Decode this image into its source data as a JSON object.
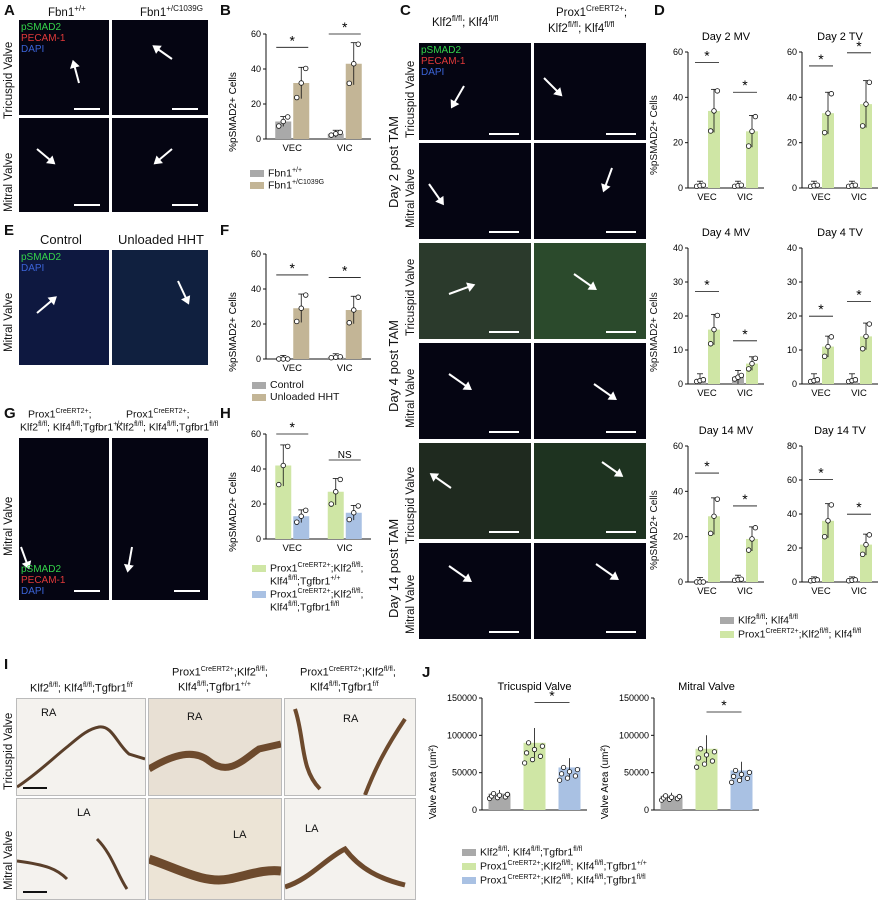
{
  "colors": {
    "grey": "#a9a9a9",
    "tan": "#c3b596",
    "green": "#cfe6a5",
    "blue": "#a9c1e3",
    "pSMAD2": "#34d34a",
    "PECAM": "#e23a3a",
    "DAPI": "#3b63d6"
  },
  "panelA": {
    "letter": "A",
    "col1": "Fbn1",
    "col1sup": "+/+",
    "col2": "Fbn1",
    "col2sup": "+/C1039G",
    "row1": "Tricuspid Valve",
    "row2": "Mitral Valve",
    "stain": [
      "pSMAD2",
      "PECAM-1",
      "DAPI"
    ]
  },
  "panelB": {
    "letter": "B",
    "ylabel": "%pSMAD2+ Cells",
    "legend": [
      {
        "name": "Fbn1",
        "sup": "+/+"
      },
      {
        "name": "Fbn1",
        "sup": "+/C1039G"
      }
    ],
    "star": "*"
  },
  "panelC": {
    "letter": "C",
    "col1": "Klf2",
    "col1a": "fl/fl",
    "col1b": "; Klf4",
    "col1c": "fl/fl",
    "col2a": "Prox1",
    "col2b": "CreERT2+",
    "col2c": ";",
    "col2d": "Klf2",
    "col2e": "fl/fl",
    "col2f": "; Klf4",
    "col2g": "fl/fl",
    "rows": [
      "Tricuspid Valve",
      "Mitral Valve",
      "Tricuspid Valve",
      "Mitral Valve",
      "Tricuspid Valve",
      "Mitral Valve"
    ],
    "groups": [
      "Day 2 post TAM",
      "Day 4 post TAM",
      "Day 14 post TAM"
    ],
    "stain": [
      "pSMAD2",
      "PECAM-1",
      "DAPI"
    ]
  },
  "panelD": {
    "letter": "D",
    "ylabel": "%pSMAD2+ Cells",
    "titles": [
      "Day 2 MV",
      "Day 2 TV",
      "Day 4 MV",
      "Day 4 TV",
      "Day 14 MV",
      "Day 14 TV"
    ],
    "legend": [
      {
        "a": "Klf2",
        "b": "fl/fl",
        "c": "; Klf4",
        "d": "fl/fl"
      },
      {
        "a": "Prox1",
        "b": "CreERT2+",
        "c": ";Klf2",
        "d": "fl/fl",
        "e": "; Klf4",
        "f": "fl/fl"
      }
    ]
  },
  "panelE": {
    "letter": "E",
    "col1": "Control",
    "col2": "Unloaded HHT",
    "row": "Mitral Valve",
    "stain": [
      "pSMAD2",
      "DAPI"
    ]
  },
  "panelF": {
    "letter": "F",
    "ylabel": "%pSMAD2+ Cells",
    "legend": [
      "Control",
      "Unloaded HHT"
    ]
  },
  "panelG": {
    "letter": "G",
    "col1": [
      "Prox1",
      "CreERT2+",
      ";",
      "Klf2",
      "fl/fl",
      "; Klf4",
      "fl/fl",
      ";Tgfbr1",
      "+/+"
    ],
    "col2": [
      "Prox1",
      "CreERT2+",
      ";",
      "Klf2",
      "fl/fl",
      "; Klf4",
      "fl/fl",
      ";Tgfbr1",
      "fl/fl"
    ],
    "row": "Mitral Valve",
    "stain": [
      "pSMAD2",
      "PECAM-1",
      "DAPI"
    ]
  },
  "panelH": {
    "letter": "H",
    "ylabel": "%pSMAD2+ Cells",
    "ns": "NS",
    "legend1": [
      "Prox1",
      "CreERT2+",
      ";Klf2",
      "fl/fl",
      ";",
      "Klf4",
      "fl/fl",
      ";Tgfbr1",
      "+/+"
    ],
    "legend2": [
      "Prox1",
      "CreERT2+",
      ";Klf2",
      "fl/fl",
      ";",
      "Klf4",
      "fl/fl",
      ";Tgfbr1",
      "fl/fl"
    ]
  },
  "panelI": {
    "letter": "I",
    "col1": [
      "Klf2",
      "fl/fl",
      "; Klf4",
      "fl/fl",
      ";Tgfbr1",
      "f/f"
    ],
    "col2": [
      "Prox1",
      "CreERT2+",
      ";Klf2",
      "fl/fl",
      ";",
      "Klf4",
      "fl/fl",
      ";Tgfbr1",
      "+/+"
    ],
    "col3": [
      "Prox1",
      "CreERT2+",
      ";Klf2",
      "fl/fl",
      ";",
      "Klf4",
      "fl/fl",
      ";Tgfbr1",
      "f/f"
    ],
    "row1": "Tricuspid Valve",
    "row2": "Mitral Valve",
    "ra": "RA",
    "la": "LA"
  },
  "panelJ": {
    "letter": "J",
    "titles": [
      "Tricuspid Valve",
      "Mitral Valve"
    ],
    "ylabel": "Valve Area (um²)",
    "legend": [
      [
        "Klf2",
        "fl/fl",
        "; Klf4",
        "fl/fl",
        ";Tgfbr1",
        "fl/fl"
      ],
      [
        "Prox1",
        "CreERT2+",
        ";Klf2",
        "fl/fl",
        "; Klf4",
        "fl/fl",
        ";Tgfbr1",
        "+/+"
      ],
      [
        "Prox1",
        "CreERT2+",
        ";Klf2",
        "fl/fl",
        "; Klf4",
        "fl/fl",
        ";Tgfbr1",
        "fl/fl"
      ]
    ]
  },
  "chart_data": [
    {
      "id": "B",
      "type": "bar",
      "categories": [
        "VEC",
        "VIC"
      ],
      "series": [
        {
          "name": "Fbn1+/+",
          "values": [
            10,
            3
          ]
        },
        {
          "name": "Fbn1+/C1039G",
          "values": [
            32,
            43
          ]
        }
      ],
      "ylim": [
        0,
        60
      ],
      "yticks": [
        0,
        20,
        40,
        60
      ],
      "ylabel": "%pSMAD2+ Cells",
      "significance": [
        "*",
        "*"
      ]
    },
    {
      "id": "F",
      "type": "bar",
      "categories": [
        "VEC",
        "VIC"
      ],
      "series": [
        {
          "name": "Control",
          "values": [
            0,
            1
          ]
        },
        {
          "name": "Unloaded HHT",
          "values": [
            29,
            28
          ]
        }
      ],
      "ylim": [
        0,
        60
      ],
      "yticks": [
        0,
        20,
        40,
        60
      ],
      "ylabel": "%pSMAD2+ Cells",
      "significance": [
        "*",
        "*"
      ]
    },
    {
      "id": "H",
      "type": "bar",
      "categories": [
        "VEC",
        "VIC"
      ],
      "series": [
        {
          "name": "Prox1CreERT2+;Klf2fl/fl;Klf4fl/fl;Tgfbr1+/+",
          "values": [
            42,
            27
          ]
        },
        {
          "name": "Prox1CreERT2+;Klf2fl/fl;Klf4fl/fl;Tgfbr1fl/fl",
          "values": [
            13,
            15
          ]
        }
      ],
      "ylim": [
        0,
        60
      ],
      "yticks": [
        0,
        20,
        40,
        60
      ],
      "ylabel": "%pSMAD2+ Cells",
      "significance": [
        "*",
        "NS"
      ]
    },
    {
      "id": "D1",
      "type": "bar",
      "title": "Day 2 MV",
      "categories": [
        "VEC",
        "VIC"
      ],
      "series": [
        {
          "name": "Klf2fl/fl; Klf4fl/fl",
          "values": [
            1,
            1
          ]
        },
        {
          "name": "Prox1CreERT2+;Klf2fl/fl; Klf4fl/fl",
          "values": [
            34,
            25
          ]
        }
      ],
      "ylim": [
        0,
        60
      ],
      "yticks": [
        0,
        20,
        40,
        60
      ]
    },
    {
      "id": "D2",
      "type": "bar",
      "title": "Day 2 TV",
      "categories": [
        "VEC",
        "VIC"
      ],
      "series": [
        {
          "name": "Klf2fl/fl; Klf4fl/fl",
          "values": [
            1,
            1
          ]
        },
        {
          "name": "Prox1CreERT2+;Klf2fl/fl; Klf4fl/fl",
          "values": [
            33,
            37
          ]
        }
      ],
      "ylim": [
        0,
        60
      ],
      "yticks": [
        0,
        20,
        40,
        60
      ]
    },
    {
      "id": "D3",
      "type": "bar",
      "title": "Day 4 MV",
      "categories": [
        "VEC",
        "VIC"
      ],
      "series": [
        {
          "name": "Klf2fl/fl; Klf4fl/fl",
          "values": [
            1,
            2
          ]
        },
        {
          "name": "Prox1CreERT2+;Klf2fl/fl; Klf4fl/fl",
          "values": [
            16,
            6
          ]
        }
      ],
      "ylim": [
        0,
        40
      ],
      "yticks": [
        0,
        10,
        20,
        30,
        40
      ]
    },
    {
      "id": "D4",
      "type": "bar",
      "title": "Day 4 TV",
      "categories": [
        "VEC",
        "VIC"
      ],
      "series": [
        {
          "name": "Klf2fl/fl; Klf4fl/fl",
          "values": [
            1,
            1
          ]
        },
        {
          "name": "Prox1CreERT2+;Klf2fl/fl; Klf4fl/fl",
          "values": [
            11,
            14
          ]
        }
      ],
      "ylim": [
        0,
        40
      ],
      "yticks": [
        0,
        10,
        20,
        30,
        40
      ]
    },
    {
      "id": "D5",
      "type": "bar",
      "title": "Day 14 MV",
      "categories": [
        "VEC",
        "VIC"
      ],
      "series": [
        {
          "name": "Klf2fl/fl; Klf4fl/fl",
          "values": [
            0,
            1
          ]
        },
        {
          "name": "Prox1CreERT2+;Klf2fl/fl; Klf4fl/fl",
          "values": [
            29,
            19
          ]
        }
      ],
      "ylim": [
        0,
        60
      ],
      "yticks": [
        0,
        20,
        40,
        60
      ]
    },
    {
      "id": "D6",
      "type": "bar",
      "title": "Day 14 TV",
      "categories": [
        "VEC",
        "VIC"
      ],
      "series": [
        {
          "name": "Klf2fl/fl; Klf4fl/fl",
          "values": [
            1,
            1
          ]
        },
        {
          "name": "Prox1CreERT2+;Klf2fl/fl; Klf4fl/fl",
          "values": [
            36,
            22
          ]
        }
      ],
      "ylim": [
        0,
        80
      ],
      "yticks": [
        0,
        20,
        40,
        60,
        80
      ]
    },
    {
      "id": "J1",
      "type": "bar",
      "title": "Tricuspid Valve",
      "categories": [
        "Klf2fl/fl; Klf4fl/fl;Tgfbr1fl/fl",
        "Prox1CreERT2+;Klf2fl/fl; Klf4fl/fl;Tgfbr1+/+",
        "Prox1CreERT2+;Klf2fl/fl; Klf4fl/fl;Tgfbr1fl/fl"
      ],
      "values": [
        22000,
        90000,
        57000
      ],
      "ylim": [
        0,
        150000
      ],
      "yticks": [
        0,
        50000,
        100000,
        150000
      ],
      "ylabel": "Valve Area (um²)"
    },
    {
      "id": "J2",
      "type": "bar",
      "title": "Mitral Valve",
      "categories": [
        "Klf2fl/fl; Klf4fl/fl;Tgfbr1fl/fl",
        "Prox1CreERT2+;Klf2fl/fl; Klf4fl/fl;Tgfbr1+/+",
        "Prox1CreERT2+;Klf2fl/fl; Klf4fl/fl;Tgfbr1fl/fl"
      ],
      "values": [
        19000,
        82000,
        53000
      ],
      "ylim": [
        0,
        150000
      ],
      "yticks": [
        0,
        50000,
        100000,
        150000
      ]
    }
  ]
}
